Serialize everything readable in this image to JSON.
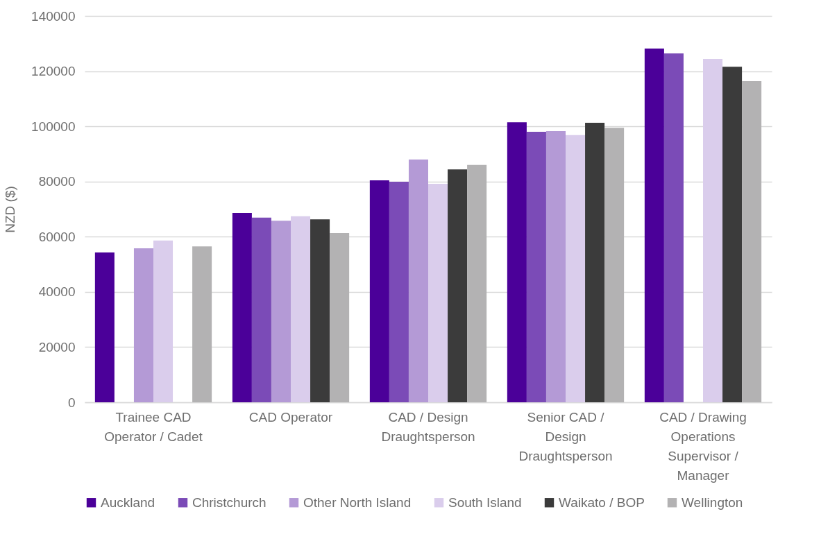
{
  "chart_data": {
    "type": "bar",
    "ylabel": "NZD ($)",
    "categories": [
      "Trainee CAD Operator / Cadet",
      "CAD Operator",
      "CAD / Design Draughtsperson",
      "Senior CAD / Design Draughtsperson",
      "CAD / Drawing Operations Supervisor / Manager"
    ],
    "series": [
      {
        "name": "Auckland",
        "color": "#4b0099",
        "values": [
          54300,
          68600,
          80400,
          101500,
          128200
        ]
      },
      {
        "name": "Christchurch",
        "color": "#7b4bb7",
        "values": [
          null,
          66900,
          79900,
          98000,
          126400
        ]
      },
      {
        "name": "Other North Island",
        "color": "#b49ad6",
        "values": [
          55800,
          65800,
          88000,
          98300,
          null
        ]
      },
      {
        "name": "South Island",
        "color": "#dacdec",
        "values": [
          58600,
          67400,
          79200,
          96800,
          124400
        ]
      },
      {
        "name": "Waikato / BOP",
        "color": "#3b3b3b",
        "values": [
          null,
          66300,
          84400,
          101300,
          121600
        ]
      },
      {
        "name": "Wellington",
        "color": "#b3b2b3",
        "values": [
          56500,
          61300,
          86000,
          99500,
          116400
        ]
      }
    ],
    "ylim": [
      0,
      140000
    ],
    "yticks": [
      0,
      20000,
      40000,
      60000,
      80000,
      100000,
      120000,
      140000
    ],
    "grid": "y",
    "legend": "bottom"
  }
}
